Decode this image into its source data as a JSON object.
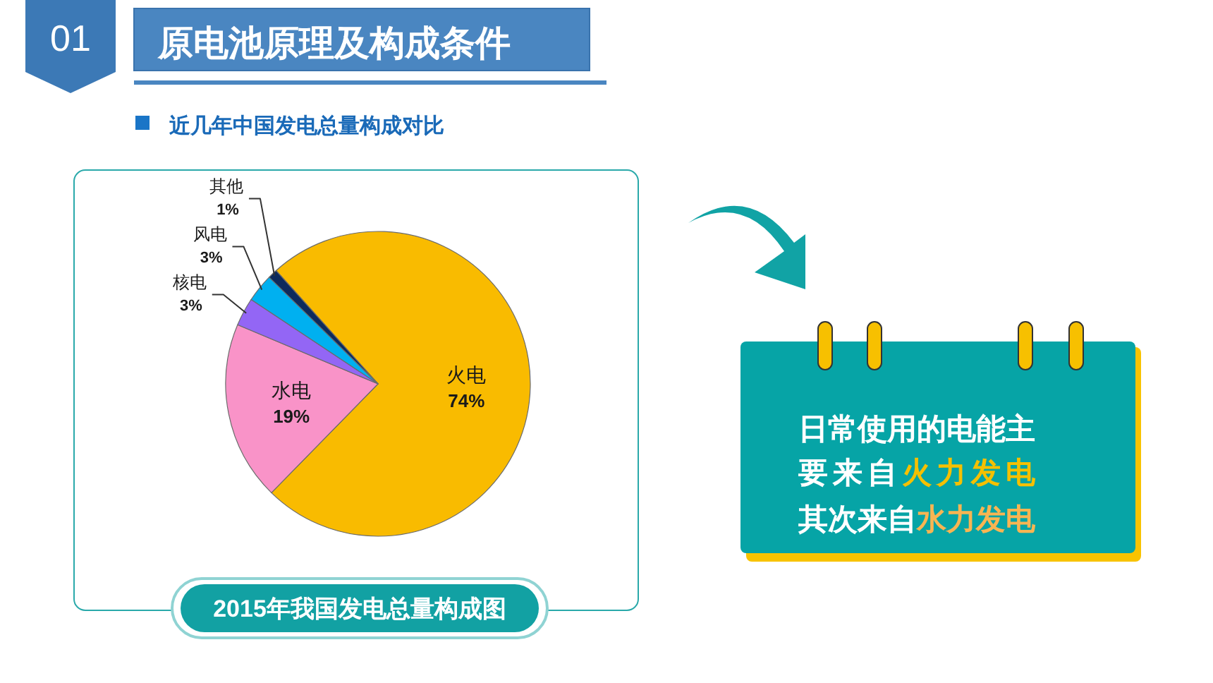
{
  "chart_data": {
    "type": "pie",
    "title": "2015年我国发电总量构成图",
    "subtitle": "近几年中国发电总量构成对比",
    "categories": [
      "火电",
      "水电",
      "核电",
      "风电",
      "其他"
    ],
    "values": [
      74,
      19,
      3,
      3,
      1
    ],
    "value_labels": [
      "74%",
      "19%",
      "3%",
      "3%",
      "1%"
    ],
    "colors": [
      "#f9bb00",
      "#f993c8",
      "#9366f5",
      "#00b0f0",
      "#0d2a5c"
    ],
    "annotations": [
      "01",
      "原电池原理及构成条件",
      "日常使用的电能主",
      "要来自",
      "火力发电",
      "其次来自",
      "水力发电"
    ]
  }
}
